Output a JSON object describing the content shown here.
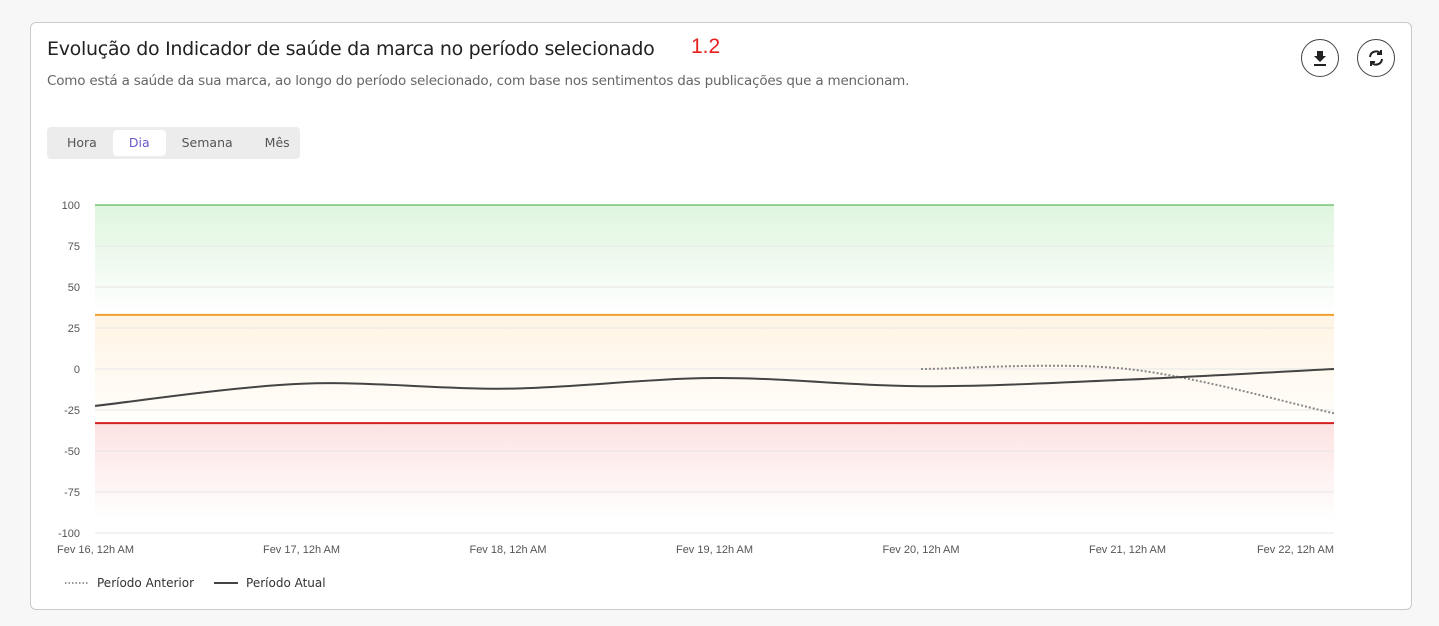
{
  "header": {
    "title": "Evolução do Indicador de saúde da marca no período selecionado",
    "version_label": "1.2",
    "subtitle": "Como está a saúde da sua marca, ao longo do período selecionado, com base nos sentimentos das publicações que a mencionam.",
    "actions": [
      {
        "icon": "download-icon"
      },
      {
        "icon": "refresh-icon"
      }
    ]
  },
  "tabs": [
    {
      "label": "Hora",
      "active": false
    },
    {
      "label": "Dia",
      "active": true
    },
    {
      "label": "Semana",
      "active": false
    },
    {
      "label": "Mês",
      "active": false
    }
  ],
  "colors": {
    "accent": "#6a5acd",
    "positive": "#3aa63a",
    "neutral": "#f0a030",
    "negative": "#d42020",
    "series": "#444444"
  },
  "chart_data": {
    "type": "line",
    "categories": [
      "Fev 16, 12h AM",
      "Fev 17, 12h AM",
      "Fev 18, 12h AM",
      "Fev 19, 12h AM",
      "Fev 20, 12h AM",
      "Fev 21, 12h AM",
      "Fev 22, 12h AM"
    ],
    "yticks": [
      "100",
      "75",
      "50",
      "25",
      "0",
      "-25",
      "-50",
      "-75",
      "-100"
    ],
    "ylim": [
      -100,
      100
    ],
    "grid": true,
    "thresholds": [
      {
        "value": 100,
        "color": "#3aa63a"
      },
      {
        "value": 33,
        "color": "#f0a030"
      },
      {
        "value": -33,
        "color": "#d42020"
      }
    ],
    "series": [
      {
        "name": "Período Anterior",
        "style": "dotted",
        "values": [
          null,
          null,
          null,
          null,
          0,
          0,
          -27
        ]
      },
      {
        "name": "Período Atual",
        "style": "solid",
        "values": [
          -22.5,
          -9,
          -12,
          -5.5,
          -10.5,
          -6.5,
          0
        ]
      }
    ],
    "legend": "bottom-left"
  }
}
